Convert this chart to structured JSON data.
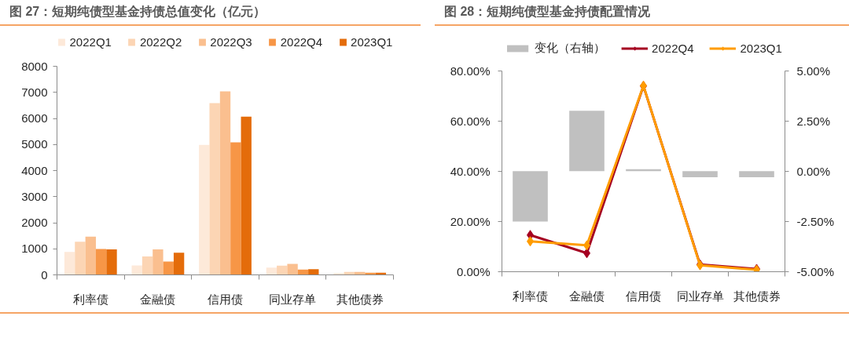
{
  "chart_data": [
    {
      "type": "bar",
      "title": "图 27：短期纯债型基金持债总值变化（亿元）",
      "categories": [
        "利率债",
        "金融债",
        "信用债",
        "同业存单",
        "其他债券"
      ],
      "series": [
        {
          "name": "2022Q1",
          "color": "#fde9d9",
          "values": [
            880,
            360,
            4990,
            280,
            70
          ]
        },
        {
          "name": "2022Q2",
          "color": "#fcd5b4",
          "values": [
            1270,
            710,
            6590,
            350,
            110
          ]
        },
        {
          "name": "2022Q3",
          "color": "#fabf8f",
          "values": [
            1470,
            980,
            7040,
            420,
            110
          ]
        },
        {
          "name": "2022Q4",
          "color": "#f79646",
          "values": [
            990,
            510,
            5090,
            200,
            80
          ]
        },
        {
          "name": "2023Q1",
          "color": "#e46c0a",
          "values": [
            980,
            850,
            6070,
            220,
            80
          ]
        }
      ],
      "ylim": [
        0,
        8000
      ],
      "yticks": [
        0,
        1000,
        2000,
        3000,
        4000,
        5000,
        6000,
        7000,
        8000
      ],
      "legend": "top",
      "grid": false
    },
    {
      "type": "line",
      "title": "图 28：短期纯债型基金持债配置情况",
      "categories": [
        "利率债",
        "金融债",
        "信用债",
        "同业存单",
        "其他债券"
      ],
      "series": [
        {
          "name": "变化（右轴）",
          "type": "bar",
          "axis": "y2",
          "color": "#c0c0c0",
          "values": [
            -2.5,
            3.0,
            0.1,
            -0.3,
            -0.3
          ]
        },
        {
          "name": "2022Q4",
          "color": "#a50021",
          "values": [
            14.6,
            7.4,
            73.9,
            2.9,
            1.1
          ]
        },
        {
          "name": "2023Q1",
          "color": "#ff9c00",
          "values": [
            12.1,
            10.5,
            74.0,
            2.6,
            0.8
          ]
        }
      ],
      "ylim": [
        0,
        80
      ],
      "yticks": [
        {
          "value": 0,
          "label": "0.00%"
        },
        {
          "value": 20,
          "label": "20.00%"
        },
        {
          "value": 40,
          "label": "40.00%"
        },
        {
          "value": 60,
          "label": "60.00%"
        },
        {
          "value": 80,
          "label": "80.00%"
        }
      ],
      "y2lim": [
        -5,
        5
      ],
      "y2ticks": [
        {
          "value": -5,
          "label": "-5.00%"
        },
        {
          "value": -2.5,
          "label": "-2.50%"
        },
        {
          "value": 0,
          "label": "0.00%"
        },
        {
          "value": 2.5,
          "label": "2.50%"
        },
        {
          "value": 5,
          "label": "5.00%"
        }
      ],
      "marker": "diamond",
      "legend": "top",
      "grid": false
    }
  ]
}
